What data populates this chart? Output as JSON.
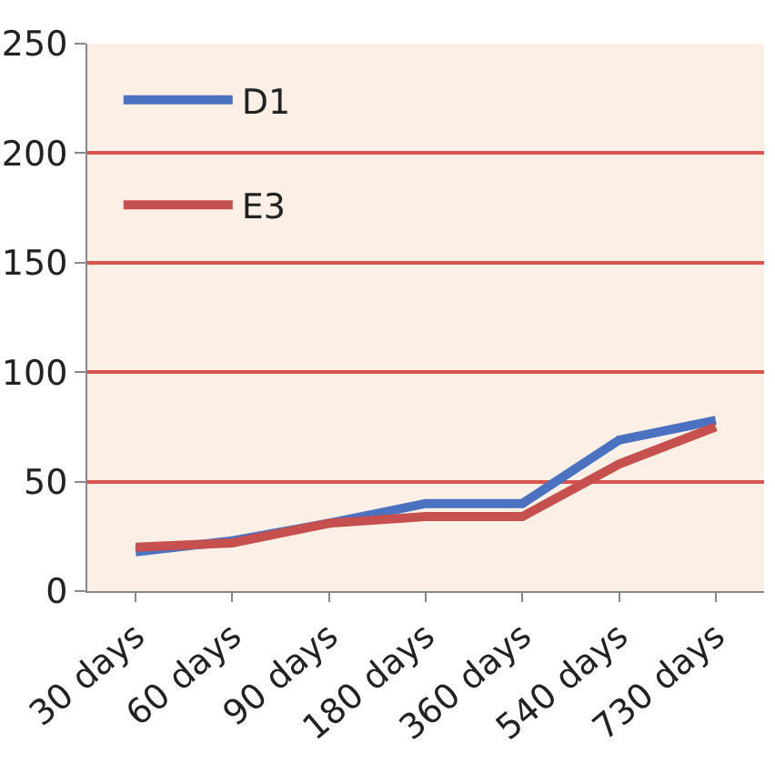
{
  "chart_data": {
    "type": "line",
    "categories": [
      "30 days",
      "60 days",
      "90 days",
      "180 days",
      "360 days",
      "540 days",
      "730 days"
    ],
    "series": [
      {
        "name": "D1",
        "color": "#4a72c0",
        "values": [
          18,
          23,
          31,
          40,
          40,
          69,
          78
        ]
      },
      {
        "name": "E3",
        "color": "#c5504e",
        "values": [
          20,
          22,
          31,
          34,
          34,
          58,
          75
        ]
      }
    ],
    "ylim": [
      0,
      250
    ],
    "yticks": [
      0,
      50,
      100,
      150,
      200,
      250
    ],
    "grid": "y",
    "legend": "top left",
    "marker": "none",
    "line_style": "solid"
  }
}
